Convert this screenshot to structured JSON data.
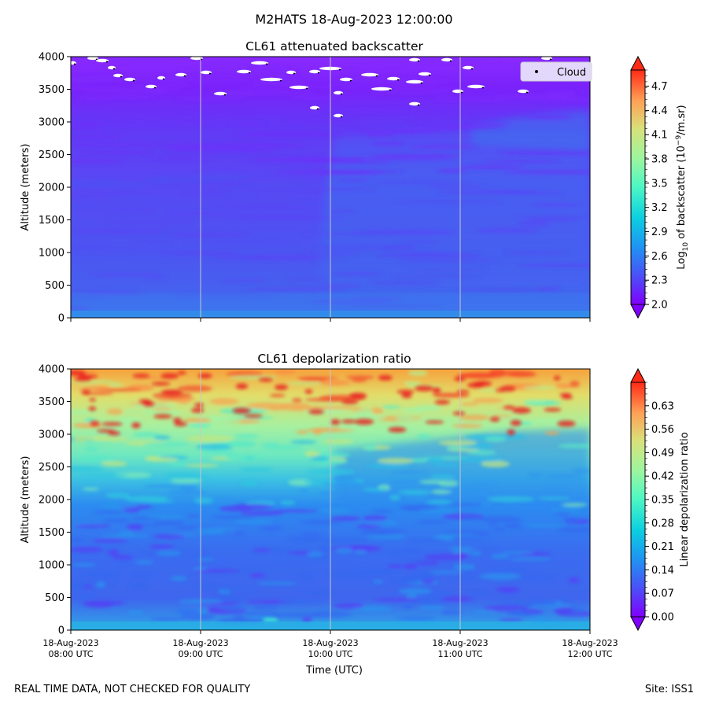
{
  "figure": {
    "suptitle": "M2HATS 18-Aug-2023 12:00:00",
    "footer_left": "REAL TIME DATA, NOT CHECKED FOR QUALITY",
    "footer_right": "Site: ISS1",
    "colormap": "rainbow"
  },
  "chart_data": [
    {
      "type": "heatmap",
      "title": "CL61 attenuated backscatter",
      "ylabel": "Altitude (meters)",
      "xlabel": "",
      "x_tick_labels": [],
      "y_ticks": [
        0,
        500,
        1000,
        1500,
        2000,
        2500,
        3000,
        3500,
        4000
      ],
      "ylim": [
        0,
        4000
      ],
      "colorbar": {
        "label_main": "Log",
        "label_sub": "10",
        "label_rest": " of backscatter (10",
        "label_sup": "−9",
        "label_end": "/m.sr)",
        "ticks": [
          "2.0",
          "2.3",
          "2.6",
          "2.9",
          "3.2",
          "3.5",
          "3.8",
          "4.1",
          "4.4",
          "4.7"
        ],
        "range": [
          2.0,
          4.9
        ],
        "extend": "both"
      },
      "legend": {
        "label": "Cloud",
        "position": "top-right",
        "marker": "black dot"
      },
      "grid": "vertical at hourly ticks",
      "approx_profile": [
        {
          "altitude": 0,
          "value": 2.5
        },
        {
          "altitude": 300,
          "value": 2.4
        },
        {
          "altitude": 1000,
          "value": 2.3
        },
        {
          "altitude": 2000,
          "value": 2.25
        },
        {
          "altitude": 3000,
          "value": 2.15
        },
        {
          "altitude": 3500,
          "value": 2.05
        },
        {
          "altitude": 4000,
          "value": 2.0
        }
      ]
    },
    {
      "type": "heatmap",
      "title": "CL61 depolarization ratio",
      "ylabel": "Altitude (meters)",
      "xlabel": "Time (UTC)",
      "x_tick_labels": [
        [
          "18-Aug-2023",
          "08:00 UTC"
        ],
        [
          "18-Aug-2023",
          "09:00 UTC"
        ],
        [
          "18-Aug-2023",
          "10:00 UTC"
        ],
        [
          "18-Aug-2023",
          "11:00 UTC"
        ],
        [
          "18-Aug-2023",
          "12:00 UTC"
        ]
      ],
      "y_ticks": [
        0,
        500,
        1000,
        1500,
        2000,
        2500,
        3000,
        3500,
        4000
      ],
      "ylim": [
        0,
        4000
      ],
      "colorbar": {
        "label": "Linear depolarization ratio",
        "ticks": [
          "0.00",
          "0.07",
          "0.14",
          "0.21",
          "0.28",
          "0.35",
          "0.42",
          "0.49",
          "0.56",
          "0.63"
        ],
        "range": [
          0.0,
          0.7
        ],
        "extend": "both"
      },
      "grid": "vertical at hourly ticks",
      "approx_profile": [
        {
          "altitude": 0,
          "value": 0.12
        },
        {
          "altitude": 1000,
          "value": 0.1
        },
        {
          "altitude": 2000,
          "value": 0.15
        },
        {
          "altitude": 2500,
          "value": 0.3
        },
        {
          "altitude": 3000,
          "value": 0.45
        },
        {
          "altitude": 3500,
          "value": 0.55
        },
        {
          "altitude": 4000,
          "value": 0.6
        }
      ]
    }
  ]
}
